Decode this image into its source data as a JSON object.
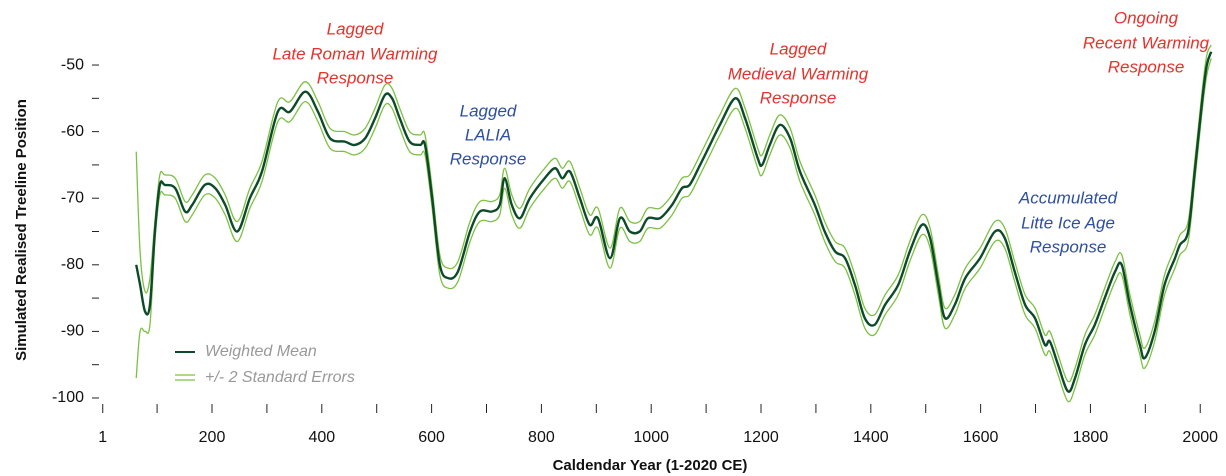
{
  "chart_data": {
    "type": "line",
    "xlabel": "Caldendar Year (1-2020 CE)",
    "ylabel": "Simulated Realised Treeline Position",
    "x": [
      62,
      69,
      78,
      87,
      96,
      105,
      114,
      133,
      151,
      164,
      187,
      206,
      224,
      246,
      269,
      291,
      320,
      342,
      370,
      393,
      415,
      442,
      460,
      479,
      497,
      515,
      528,
      542,
      560,
      579,
      588,
      601,
      615,
      630,
      648,
      670,
      688,
      710,
      724,
      733,
      746,
      761,
      779,
      806,
      825,
      838,
      852,
      870,
      888,
      903,
      925,
      943,
      961,
      979,
      994,
      1016,
      1038,
      1056,
      1070,
      1089,
      1107,
      1125,
      1153,
      1171,
      1194,
      1202,
      1216,
      1234,
      1253,
      1271,
      1298,
      1316,
      1335,
      1353,
      1371,
      1389,
      1407,
      1426,
      1450,
      1471,
      1493,
      1508,
      1523,
      1535,
      1553,
      1572,
      1599,
      1626,
      1644,
      1662,
      1681,
      1699,
      1717,
      1726,
      1741,
      1759,
      1772,
      1790,
      1808,
      1826,
      1845,
      1857,
      1872,
      1890,
      1899,
      1917,
      1935,
      1954,
      1963,
      1978,
      1990,
      2004,
      2012,
      2020
    ],
    "series": [
      {
        "name": "Weighted Mean",
        "color": "#0d4a2a",
        "values": [
          -80,
          -83,
          -87,
          -86,
          -75,
          -68,
          -68,
          -68.5,
          -72,
          -71,
          -68,
          -68.5,
          -71,
          -75,
          -70,
          -66,
          -57,
          -57,
          -54,
          -57,
          -61,
          -61.5,
          -62,
          -61,
          -58,
          -54.5,
          -55,
          -58,
          -61.5,
          -62,
          -62,
          -70,
          -80,
          -82,
          -81,
          -75,
          -72,
          -72,
          -71,
          -67,
          -71,
          -73,
          -70,
          -67,
          -65.5,
          -67,
          -66,
          -70,
          -74,
          -73,
          -79,
          -73,
          -75,
          -75,
          -73,
          -73,
          -71,
          -68.5,
          -68,
          -65,
          -62,
          -59,
          -55,
          -58,
          -64,
          -65,
          -62,
          -59,
          -61,
          -66,
          -71,
          -75,
          -78,
          -79,
          -83,
          -88,
          -89,
          -86,
          -83,
          -78,
          -74,
          -76,
          -83,
          -88,
          -86,
          -82,
          -79,
          -75,
          -76,
          -81,
          -86,
          -88,
          -92,
          -91.5,
          -95,
          -99,
          -97,
          -92,
          -89,
          -85,
          -81,
          -80,
          -86,
          -92,
          -94,
          -90,
          -83,
          -79,
          -77,
          -75,
          -66,
          -55,
          -50,
          -48
        ]
      },
      {
        "name": "+/- 2 Standard Errors",
        "color": "#7cc142",
        "upper": [
          -63,
          -78,
          -84,
          -82,
          -73.5,
          -66.5,
          -66.5,
          -67,
          -70.5,
          -69.5,
          -66.5,
          -67,
          -69.5,
          -73.5,
          -68.5,
          -64.5,
          -55.5,
          -55.5,
          -52.5,
          -55.5,
          -59.5,
          -60,
          -60.5,
          -59.5,
          -56.5,
          -53,
          -53.5,
          -56.5,
          -60,
          -60.5,
          -60.5,
          -68.5,
          -78.5,
          -80.5,
          -79.5,
          -73.5,
          -70.5,
          -70.5,
          -69.5,
          -65.5,
          -69.5,
          -71.5,
          -68.5,
          -65.5,
          -64,
          -65.5,
          -64.5,
          -68.5,
          -72.5,
          -71.5,
          -77.5,
          -71.5,
          -73.5,
          -73.5,
          -71.5,
          -71.5,
          -69.5,
          -67,
          -66.5,
          -63.5,
          -60.5,
          -57.5,
          -53.5,
          -56.5,
          -62.5,
          -63.5,
          -60.5,
          -57.5,
          -59.5,
          -64.5,
          -69.5,
          -73.5,
          -76.5,
          -77.5,
          -81.5,
          -86.5,
          -87.5,
          -84.5,
          -81.5,
          -76.5,
          -72.5,
          -74.5,
          -81.5,
          -86.5,
          -84.5,
          -80.5,
          -77.5,
          -73.5,
          -74.5,
          -79.5,
          -84.5,
          -86.5,
          -90.5,
          -90,
          -93.5,
          -97.5,
          -95.5,
          -90.5,
          -87.5,
          -83.5,
          -79.5,
          -78.5,
          -84.5,
          -90.5,
          -92.5,
          -88.5,
          -81.5,
          -77.5,
          -75.5,
          -73.5,
          -64.5,
          -53.5,
          -48.5,
          -47
        ],
        "lower": [
          -97,
          -90,
          -90,
          -89,
          -76.5,
          -69.5,
          -69.5,
          -70,
          -73.5,
          -72.5,
          -69.5,
          -70,
          -72.5,
          -76.5,
          -71.5,
          -67.5,
          -58.5,
          -58.5,
          -55.5,
          -58.5,
          -62.5,
          -63,
          -63.5,
          -62.5,
          -59.5,
          -56,
          -56.5,
          -59.5,
          -63,
          -63.5,
          -63.5,
          -71.5,
          -81.5,
          -83.5,
          -82.5,
          -76.5,
          -73.5,
          -73.5,
          -72.5,
          -68.5,
          -72.5,
          -74.5,
          -71.5,
          -68.5,
          -67,
          -68.5,
          -67.5,
          -71.5,
          -75.5,
          -74.5,
          -80.5,
          -74.5,
          -76.5,
          -76.5,
          -74.5,
          -74.5,
          -72.5,
          -70,
          -69.5,
          -66.5,
          -63.5,
          -60.5,
          -56.5,
          -59.5,
          -65.5,
          -66.5,
          -63.5,
          -60.5,
          -62.5,
          -67.5,
          -72.5,
          -76.5,
          -79.5,
          -80.5,
          -84.5,
          -89.5,
          -90.5,
          -87.5,
          -84.5,
          -79.5,
          -75.5,
          -77.5,
          -84.5,
          -89.5,
          -87.5,
          -83.5,
          -80.5,
          -76.5,
          -77.5,
          -82.5,
          -87.5,
          -89.5,
          -93.5,
          -93,
          -96.5,
          -100.5,
          -98.5,
          -93.5,
          -90.5,
          -86.5,
          -82.5,
          -81.5,
          -87.5,
          -93.5,
          -95.5,
          -91.5,
          -84.5,
          -80.5,
          -78.5,
          -76.5,
          -67.5,
          -56.5,
          -51.5,
          -49
        ]
      }
    ],
    "xlim": [
      -10,
      2030
    ],
    "xticks": [
      1,
      200,
      400,
      600,
      800,
      1000,
      1200,
      1400,
      1600,
      1800,
      2000
    ],
    "xminorticks": [
      100,
      300,
      500,
      700,
      900,
      1100,
      1300,
      1500,
      1700,
      1900
    ],
    "ylim": [
      -102,
      -46
    ],
    "yticks": [
      -100,
      -90,
      -80,
      -70,
      -60,
      -50
    ],
    "yminorticks": [
      -95,
      -85,
      -75,
      -65,
      -55
    ],
    "legend": "lower left",
    "annotations": [
      {
        "lines": [
          "Lagged",
          "Late Roman Warming",
          "Response"
        ],
        "color": "#e8312a"
      },
      {
        "lines": [
          "Lagged",
          "LALIA",
          "Response"
        ],
        "color": "#2e4fa0"
      },
      {
        "lines": [
          "Lagged",
          "Medieval Warming",
          "Response"
        ],
        "color": "#e8312a"
      },
      {
        "lines": [
          "Accumulated",
          "Litte Ice Age",
          "Response"
        ],
        "color": "#2e4fa0"
      },
      {
        "lines": [
          "Ongoing",
          "Recent Warming",
          "Response"
        ],
        "color": "#e8312a"
      }
    ]
  }
}
